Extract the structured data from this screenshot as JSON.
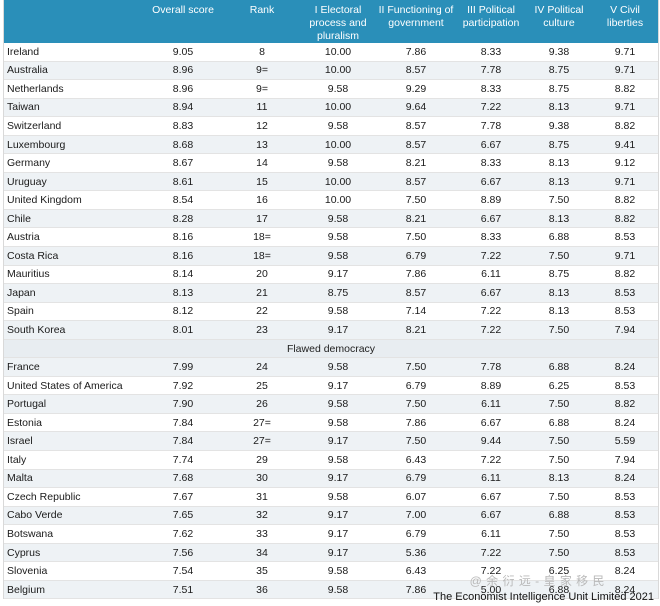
{
  "headers": [
    "",
    "Overall score",
    "Rank",
    "I Electoral process and pluralism",
    "II Functioning of government",
    "III Political participation",
    "IV Political culture",
    "V Civil liberties"
  ],
  "rows_full": [
    [
      "Ireland",
      "9.05",
      "8",
      "10.00",
      "7.86",
      "8.33",
      "9.38",
      "9.71"
    ],
    [
      "Australia",
      "8.96",
      "9=",
      "10.00",
      "8.57",
      "7.78",
      "8.75",
      "9.71"
    ],
    [
      "Netherlands",
      "8.96",
      "9=",
      "9.58",
      "9.29",
      "8.33",
      "8.75",
      "8.82"
    ],
    [
      "Taiwan",
      "8.94",
      "11",
      "10.00",
      "9.64",
      "7.22",
      "8.13",
      "9.71"
    ],
    [
      "Switzerland",
      "8.83",
      "12",
      "9.58",
      "8.57",
      "7.78",
      "9.38",
      "8.82"
    ],
    [
      "Luxembourg",
      "8.68",
      "13",
      "10.00",
      "8.57",
      "6.67",
      "8.75",
      "9.41"
    ],
    [
      "Germany",
      "8.67",
      "14",
      "9.58",
      "8.21",
      "8.33",
      "8.13",
      "9.12"
    ],
    [
      "Uruguay",
      "8.61",
      "15",
      "10.00",
      "8.57",
      "6.67",
      "8.13",
      "9.71"
    ],
    [
      "United Kingdom",
      "8.54",
      "16",
      "10.00",
      "7.50",
      "8.89",
      "7.50",
      "8.82"
    ],
    [
      "Chile",
      "8.28",
      "17",
      "9.58",
      "8.21",
      "6.67",
      "8.13",
      "8.82"
    ],
    [
      "Austria",
      "8.16",
      "18=",
      "9.58",
      "7.50",
      "8.33",
      "6.88",
      "8.53"
    ],
    [
      "Costa Rica",
      "8.16",
      "18=",
      "9.58",
      "6.79",
      "7.22",
      "7.50",
      "9.71"
    ],
    [
      "Mauritius",
      "8.14",
      "20",
      "9.17",
      "7.86",
      "6.11",
      "8.75",
      "8.82"
    ],
    [
      "Japan",
      "8.13",
      "21",
      "8.75",
      "8.57",
      "6.67",
      "8.13",
      "8.53"
    ],
    [
      "Spain",
      "8.12",
      "22",
      "9.58",
      "7.14",
      "7.22",
      "8.13",
      "8.53"
    ],
    [
      "South Korea",
      "8.01",
      "23",
      "9.17",
      "8.21",
      "7.22",
      "7.50",
      "7.94"
    ]
  ],
  "section_label": "Flawed democracy",
  "rows_flawed": [
    [
      "France",
      "7.99",
      "24",
      "9.58",
      "7.50",
      "7.78",
      "6.88",
      "8.24"
    ],
    [
      "United States of America",
      "7.92",
      "25",
      "9.17",
      "6.79",
      "8.89",
      "6.25",
      "8.53"
    ],
    [
      "Portugal",
      "7.90",
      "26",
      "9.58",
      "7.50",
      "6.11",
      "7.50",
      "8.82"
    ],
    [
      "Estonia",
      "7.84",
      "27=",
      "9.58",
      "7.86",
      "6.67",
      "6.88",
      "8.24"
    ],
    [
      "Israel",
      "7.84",
      "27=",
      "9.17",
      "7.50",
      "9.44",
      "7.50",
      "5.59"
    ],
    [
      "Italy",
      "7.74",
      "29",
      "9.58",
      "6.43",
      "7.22",
      "7.50",
      "7.94"
    ],
    [
      "Malta",
      "7.68",
      "30",
      "9.17",
      "6.79",
      "6.11",
      "8.13",
      "8.24"
    ],
    [
      "Czech Republic",
      "7.67",
      "31",
      "9.58",
      "6.07",
      "6.67",
      "7.50",
      "8.53"
    ],
    [
      "Cabo Verde",
      "7.65",
      "32",
      "9.17",
      "7.00",
      "6.67",
      "6.88",
      "8.53"
    ],
    [
      "Botswana",
      "7.62",
      "33",
      "9.17",
      "6.79",
      "6.11",
      "7.50",
      "8.53"
    ],
    [
      "Cyprus",
      "7.56",
      "34",
      "9.17",
      "5.36",
      "7.22",
      "7.50",
      "8.53"
    ],
    [
      "Slovenia",
      "7.54",
      "35",
      "9.58",
      "6.43",
      "7.22",
      "6.25",
      "8.24"
    ],
    [
      "Belgium",
      "7.51",
      "36",
      "9.58",
      "7.86",
      "5.00",
      "6.88",
      "8.24"
    ]
  ],
  "footer": "The Economist Intelligence Unit Limited 2021",
  "watermark": "@ 余 衍 远 - 皇 家 移 民"
}
